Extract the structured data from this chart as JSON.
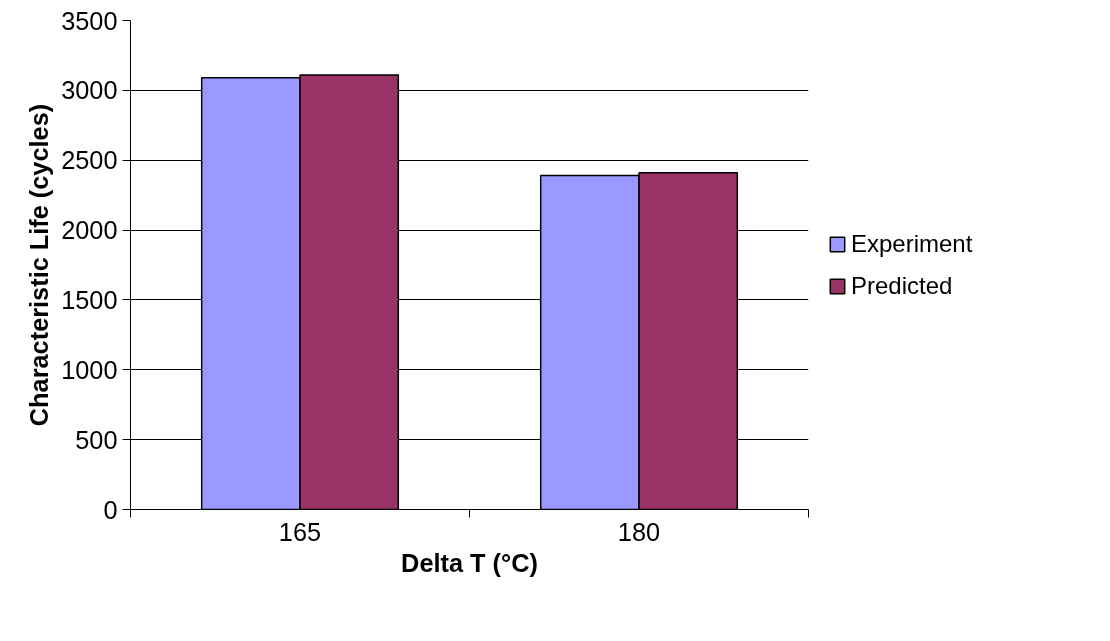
{
  "chart_data": {
    "type": "bar",
    "xlabel": "Delta T (°C)",
    "ylabel": "Characteristic Life (cycles)",
    "categories": [
      "165",
      "180"
    ],
    "series": [
      {
        "name": "Experiment",
        "color": "#9999ff",
        "values": [
          3090,
          2390
        ]
      },
      {
        "name": "Predicted",
        "color": "#993366",
        "values": [
          3110,
          2410
        ]
      }
    ],
    "ylim": [
      0,
      3500
    ],
    "yticks": [
      0,
      500,
      1000,
      1500,
      2000,
      2500,
      3000,
      3500
    ],
    "grid": "y",
    "legend": "right"
  }
}
